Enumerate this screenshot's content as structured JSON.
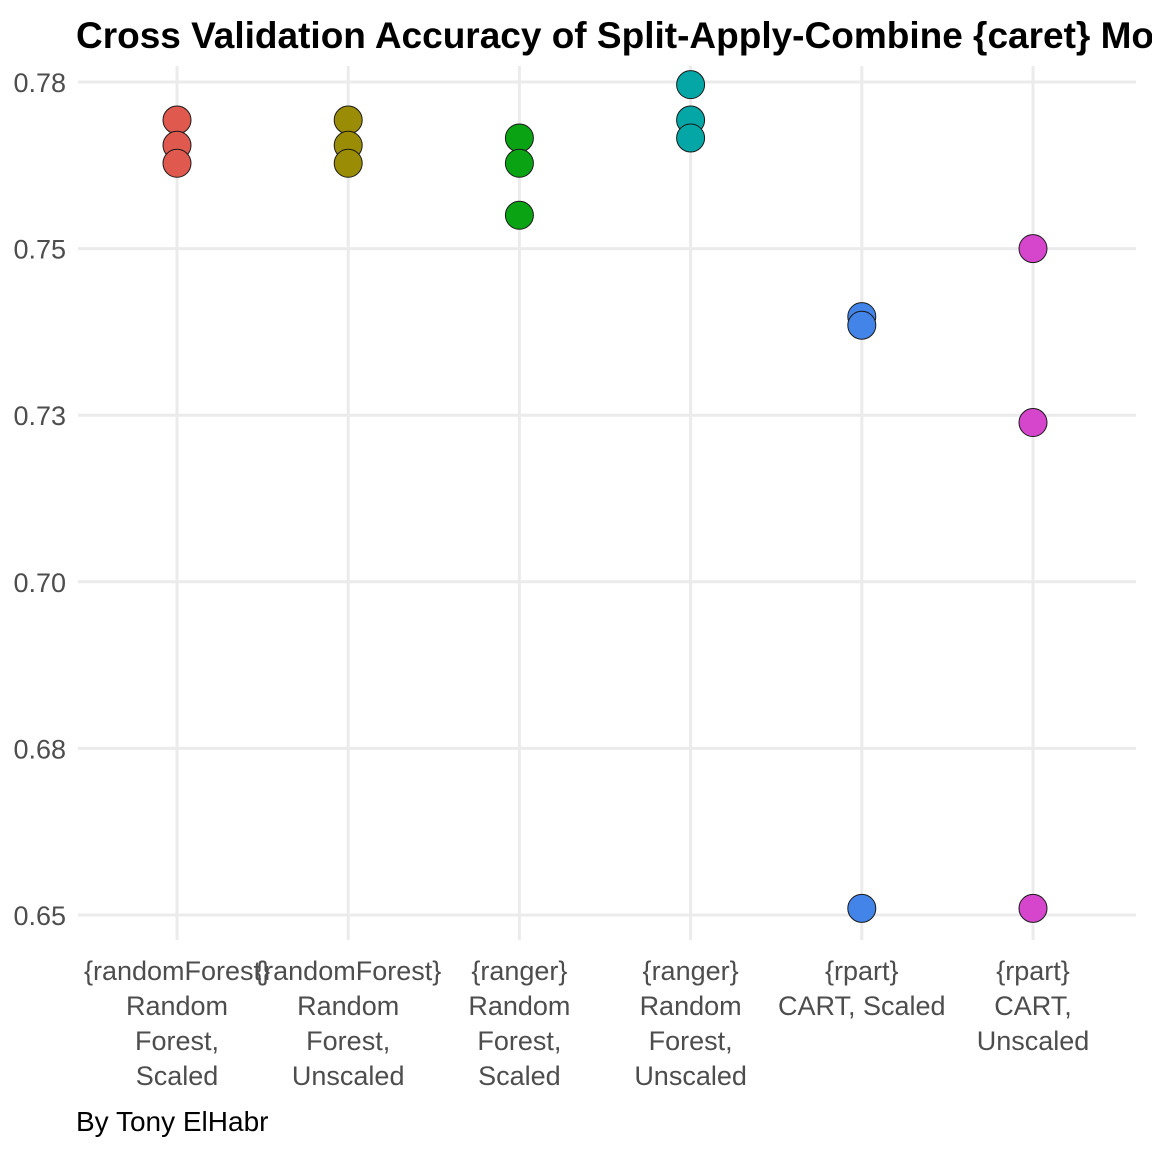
{
  "chart_data": {
    "type": "scatter",
    "title": "Cross Validation Accuracy of Split-Apply-Combine {caret} Models",
    "caption": "By Tony ElHabr",
    "xlabel": "",
    "ylabel": "",
    "ylim": [
      0.647,
      0.782
    ],
    "y_ticks": [
      {
        "value": 0.65,
        "label": "0.65"
      },
      {
        "value": 0.675,
        "label": "0.68"
      },
      {
        "value": 0.7,
        "label": "0.70"
      },
      {
        "value": 0.725,
        "label": "0.73"
      },
      {
        "value": 0.75,
        "label": "0.75"
      },
      {
        "value": 0.775,
        "label": "0.78"
      }
    ],
    "grid": true,
    "legend": "none",
    "categories": [
      {
        "label_lines": [
          "{randomForest}",
          "Random",
          "Forest,",
          "Scaled"
        ],
        "color": "#e0594f",
        "values": [
          0.7693,
          0.7655,
          0.7628
        ]
      },
      {
        "label_lines": [
          "{randomForest}",
          "Random",
          "Forest,",
          "Unscaled"
        ],
        "color": "#9a8c05",
        "values": [
          0.7693,
          0.7655,
          0.7628
        ]
      },
      {
        "label_lines": [
          "{ranger}",
          "Random",
          "Forest,",
          "Scaled"
        ],
        "color": "#0aa313",
        "values": [
          0.7666,
          0.7628,
          0.755
        ]
      },
      {
        "label_lines": [
          "{ranger}",
          "Random",
          "Forest,",
          "Unscaled"
        ],
        "color": "#04a6a6",
        "values": [
          0.7746,
          0.7693,
          0.7666
        ]
      },
      {
        "label_lines": [
          "{rpart}",
          "CART, Scaled"
        ],
        "color": "#4284e8",
        "values": [
          0.7398,
          0.7385,
          0.651
        ]
      },
      {
        "label_lines": [
          "{rpart}",
          "CART,",
          "Unscaled"
        ],
        "color": "#d646cd",
        "values": [
          0.75,
          0.7239,
          0.651
        ]
      }
    ]
  }
}
